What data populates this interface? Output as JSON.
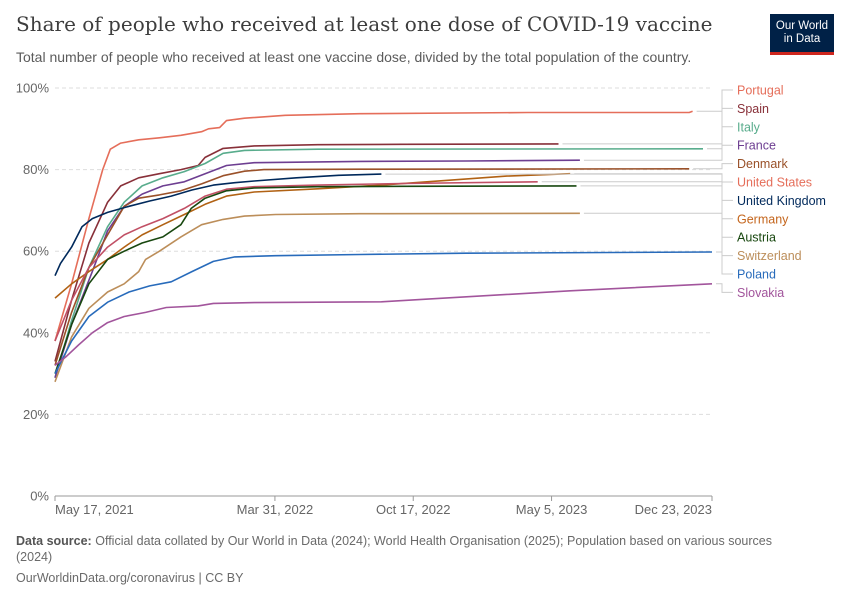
{
  "header": {
    "title": "Share of people who received at least one dose of COVID-19 vaccine",
    "subtitle": "Total number of people who received at least one vaccine dose, divided by the total population of the country."
  },
  "logo": {
    "line1": "Our World",
    "line2": "in Data",
    "bg_color": "#002147",
    "accent_color": "#ce261e"
  },
  "footer": {
    "source_label": "Data source:",
    "source_text": "Official data collated by Our World in Data (2024); World Health Organisation (2025); Population based on various sources (2024)",
    "url": "OurWorldinData.org/coronavirus",
    "separator": "|",
    "license": "CC BY"
  },
  "chart_data": {
    "type": "line",
    "title": "Share of people who received at least one dose of COVID-19 vaccine",
    "ylim": [
      0,
      100
    ],
    "y_ticks": [
      "0%",
      "20%",
      "40%",
      "60%",
      "80%",
      "100%"
    ],
    "x_range": [
      "2021-05-17",
      "2023-12-23"
    ],
    "x_ticks": [
      {
        "date": "2021-05-17",
        "label": "May 17, 2021"
      },
      {
        "date": "2022-03-31",
        "label": "Mar 31, 2022"
      },
      {
        "date": "2022-10-17",
        "label": "Oct 17, 2022"
      },
      {
        "date": "2023-05-05",
        "label": "May 5, 2023"
      },
      {
        "date": "2023-12-23",
        "label": "Dec 23, 2023"
      }
    ],
    "grid": true,
    "legend_placement": "right",
    "series": [
      {
        "name": "Portugal",
        "color": "#e56e5a",
        "points": [
          [
            "2021-05-17",
            38
          ],
          [
            "2021-06-10",
            52
          ],
          [
            "2021-07-05",
            68
          ],
          [
            "2021-07-25",
            80
          ],
          [
            "2021-08-05",
            85
          ],
          [
            "2021-08-20",
            86.5
          ],
          [
            "2021-09-15",
            87.3
          ],
          [
            "2021-10-15",
            87.8
          ],
          [
            "2021-11-15",
            88.4
          ],
          [
            "2021-12-15",
            89.3
          ],
          [
            "2021-12-25",
            90.0
          ],
          [
            "2022-01-10",
            90.3
          ],
          [
            "2022-01-20",
            92.0
          ],
          [
            "2022-02-15",
            92.6
          ],
          [
            "2022-04-15",
            93.3
          ],
          [
            "2022-08-01",
            93.7
          ],
          [
            "2023-04-01",
            94.0
          ],
          [
            "2023-11-20",
            94.0
          ],
          [
            "2023-11-25",
            94.3
          ]
        ]
      },
      {
        "name": "Spain",
        "color": "#883039",
        "points": [
          [
            "2021-05-17",
            33
          ],
          [
            "2021-06-10",
            48
          ],
          [
            "2021-07-05",
            62
          ],
          [
            "2021-08-01",
            72
          ],
          [
            "2021-08-20",
            76
          ],
          [
            "2021-09-15",
            78
          ],
          [
            "2021-10-15",
            79
          ],
          [
            "2021-11-15",
            80
          ],
          [
            "2021-12-10",
            81
          ],
          [
            "2021-12-20",
            83
          ],
          [
            "2022-01-15",
            85.2
          ],
          [
            "2022-03-01",
            85.8
          ],
          [
            "2022-06-01",
            86.1
          ],
          [
            "2022-10-01",
            86.2
          ],
          [
            "2023-05-15",
            86.3
          ]
        ]
      },
      {
        "name": "Italy",
        "color": "#6d3e91",
        "points": [
          [
            "2021-05-17",
            29
          ],
          [
            "2021-06-10",
            43
          ],
          [
            "2021-07-05",
            56
          ],
          [
            "2021-08-01",
            66
          ],
          [
            "2021-08-25",
            72
          ],
          [
            "2021-09-20",
            76
          ],
          [
            "2021-10-20",
            78
          ],
          [
            "2021-11-20",
            79.5
          ],
          [
            "2021-12-20",
            81.5
          ],
          [
            "2022-01-15",
            84
          ],
          [
            "2022-02-15",
            84.7
          ],
          [
            "2022-06-01",
            85.0
          ],
          [
            "2023-12-10",
            85.1
          ]
        ],
        "color_line": "#58ac8c"
      },
      {
        "name": "France",
        "color": "#6d3e91",
        "points": [
          [
            "2021-05-17",
            29
          ],
          [
            "2021-06-10",
            42
          ],
          [
            "2021-07-10",
            55
          ],
          [
            "2021-08-01",
            65
          ],
          [
            "2021-08-25",
            71
          ],
          [
            "2021-09-20",
            74
          ],
          [
            "2021-10-20",
            76
          ],
          [
            "2021-11-20",
            77
          ],
          [
            "2021-12-20",
            79
          ],
          [
            "2022-01-20",
            81.0
          ],
          [
            "2022-03-01",
            81.7
          ],
          [
            "2022-08-01",
            82.0
          ],
          [
            "2023-01-01",
            82.1
          ],
          [
            "2023-06-15",
            82.3
          ]
        ]
      },
      {
        "name": "Denmark",
        "color": "#a2559c",
        "points": [
          [
            "2021-05-17",
            32
          ],
          [
            "2021-06-10",
            45
          ],
          [
            "2021-07-05",
            56
          ],
          [
            "2021-08-01",
            64
          ],
          [
            "2021-08-25",
            71
          ],
          [
            "2021-09-15",
            73
          ],
          [
            "2021-10-15",
            73.8
          ],
          [
            "2021-11-15",
            74.8
          ],
          [
            "2021-12-15",
            76.5
          ],
          [
            "2022-01-15",
            78.5
          ],
          [
            "2022-02-15",
            79.6
          ],
          [
            "2022-03-15",
            80.0
          ],
          [
            "2022-08-01",
            80.1
          ],
          [
            "2023-11-20",
            80.2
          ]
        ],
        "color_line": "#9a5129"
      },
      {
        "name": "United States",
        "color": "#e56e5a",
        "points": [
          [
            "2021-05-17",
            48.5
          ],
          [
            "2021-06-10",
            52
          ],
          [
            "2021-07-05",
            55
          ],
          [
            "2021-08-01",
            58
          ],
          [
            "2021-08-25",
            61
          ],
          [
            "2021-09-20",
            64
          ],
          [
            "2021-10-20",
            66.5
          ],
          [
            "2021-11-20",
            69
          ],
          [
            "2021-12-20",
            71.5
          ],
          [
            "2022-01-20",
            73.5
          ],
          [
            "2022-03-01",
            74.5
          ],
          [
            "2022-06-01",
            75.3
          ],
          [
            "2022-09-01",
            76.2
          ],
          [
            "2022-12-01",
            77.3
          ],
          [
            "2023-03-01",
            78.4
          ],
          [
            "2023-06-01",
            79.0
          ]
        ],
        "color_line": "#b16214"
      },
      {
        "name": "United Kingdom",
        "color": "#00295b",
        "points": [
          [
            "2021-05-17",
            54
          ],
          [
            "2021-05-25",
            57
          ],
          [
            "2021-06-10",
            61
          ],
          [
            "2021-06-25",
            66
          ],
          [
            "2021-07-10",
            68
          ],
          [
            "2021-08-01",
            69.5
          ],
          [
            "2021-09-01",
            71
          ],
          [
            "2021-10-01",
            72.3
          ],
          [
            "2021-11-01",
            73.5
          ],
          [
            "2021-12-01",
            75
          ],
          [
            "2022-01-01",
            76.2
          ],
          [
            "2022-02-01",
            76.8
          ],
          [
            "2022-03-01",
            77.2
          ],
          [
            "2022-05-01",
            78.0
          ],
          [
            "2022-07-01",
            78.6
          ],
          [
            "2022-09-01",
            78.9
          ]
        ]
      },
      {
        "name": "Germany",
        "color": "#c15065",
        "points": [
          [
            "2021-05-17",
            38
          ],
          [
            "2021-06-10",
            48
          ],
          [
            "2021-07-05",
            56
          ],
          [
            "2021-08-01",
            61
          ],
          [
            "2021-08-25",
            64
          ],
          [
            "2021-09-20",
            66
          ],
          [
            "2021-10-20",
            68
          ],
          [
            "2021-11-20",
            70.5
          ],
          [
            "2021-12-20",
            73.5
          ],
          [
            "2022-01-20",
            75.2
          ],
          [
            "2022-03-01",
            75.8
          ],
          [
            "2022-06-01",
            76.2
          ],
          [
            "2022-10-01",
            76.6
          ],
          [
            "2023-03-01",
            76.9
          ],
          [
            "2023-04-15",
            77.0
          ]
        ]
      },
      {
        "name": "Austria",
        "color": "#18470f",
        "points": [
          [
            "2021-05-17",
            30
          ],
          [
            "2021-06-10",
            42
          ],
          [
            "2021-07-05",
            52
          ],
          [
            "2021-08-01",
            58
          ],
          [
            "2021-08-25",
            60
          ],
          [
            "2021-09-20",
            62
          ],
          [
            "2021-10-20",
            63.5
          ],
          [
            "2021-11-15",
            66.5
          ],
          [
            "2021-11-30",
            70.5
          ],
          [
            "2021-12-20",
            73
          ],
          [
            "2022-01-20",
            74.8
          ],
          [
            "2022-03-01",
            75.5
          ],
          [
            "2022-06-01",
            75.8
          ],
          [
            "2022-10-01",
            75.9
          ],
          [
            "2023-06-10",
            76.0
          ]
        ]
      },
      {
        "name": "Switzerland",
        "color": "#bc8e5a",
        "points": [
          [
            "2021-05-17",
            28
          ],
          [
            "2021-06-10",
            39
          ],
          [
            "2021-07-05",
            46
          ],
          [
            "2021-08-01",
            50
          ],
          [
            "2021-08-25",
            52
          ],
          [
            "2021-09-15",
            55
          ],
          [
            "2021-09-25",
            58
          ],
          [
            "2021-10-15",
            60
          ],
          [
            "2021-11-15",
            63.5
          ],
          [
            "2021-12-15",
            66.5
          ],
          [
            "2022-01-15",
            67.8
          ],
          [
            "2022-02-15",
            68.6
          ],
          [
            "2022-04-01",
            69.0
          ],
          [
            "2022-08-01",
            69.2
          ],
          [
            "2023-06-15",
            69.3
          ]
        ]
      },
      {
        "name": "Poland",
        "color": "#286bbb",
        "points": [
          [
            "2021-05-17",
            30
          ],
          [
            "2021-06-10",
            38
          ],
          [
            "2021-07-05",
            44
          ],
          [
            "2021-08-01",
            47.5
          ],
          [
            "2021-09-01",
            50
          ],
          [
            "2021-10-01",
            51.5
          ],
          [
            "2021-11-01",
            52.5
          ],
          [
            "2021-12-01",
            55
          ],
          [
            "2022-01-01",
            57.5
          ],
          [
            "2022-02-01",
            58.6
          ],
          [
            "2022-04-01",
            58.9
          ],
          [
            "2022-08-01",
            59.2
          ],
          [
            "2023-01-01",
            59.5
          ],
          [
            "2023-12-23",
            59.8
          ]
        ]
      },
      {
        "name": "Slovakia",
        "color": "#a2559c",
        "points": [
          [
            "2021-05-17",
            32
          ],
          [
            "2021-06-01",
            34
          ],
          [
            "2021-06-20",
            37
          ],
          [
            "2021-07-10",
            40
          ],
          [
            "2021-08-01",
            42.5
          ],
          [
            "2021-08-25",
            44
          ],
          [
            "2021-09-25",
            45
          ],
          [
            "2021-10-25",
            46.2
          ],
          [
            "2021-12-10",
            46.6
          ],
          [
            "2022-01-01",
            47.2
          ],
          [
            "2022-03-01",
            47.4
          ],
          [
            "2022-06-01",
            47.5
          ],
          [
            "2022-09-01",
            47.6
          ],
          [
            "2022-11-01",
            48.2
          ],
          [
            "2023-06-01",
            50.3
          ],
          [
            "2023-12-23",
            52.0
          ]
        ]
      }
    ],
    "legend": [
      {
        "name": "Portugal",
        "color": "#e56e5a"
      },
      {
        "name": "Spain",
        "color": "#883039"
      },
      {
        "name": "Italy",
        "color": "#58ac8c"
      },
      {
        "name": "France",
        "color": "#6d3e91"
      },
      {
        "name": "Denmark",
        "color": "#9a5129"
      },
      {
        "name": "United States",
        "color": "#e56e5a"
      },
      {
        "name": "United Kingdom",
        "color": "#00295b"
      },
      {
        "name": "Germany",
        "color": "#c4651c"
      },
      {
        "name": "Austria",
        "color": "#18470f"
      },
      {
        "name": "Switzerland",
        "color": "#bc8e5a"
      },
      {
        "name": "Poland",
        "color": "#286bbb"
      },
      {
        "name": "Slovakia",
        "color": "#a2559c"
      }
    ]
  }
}
